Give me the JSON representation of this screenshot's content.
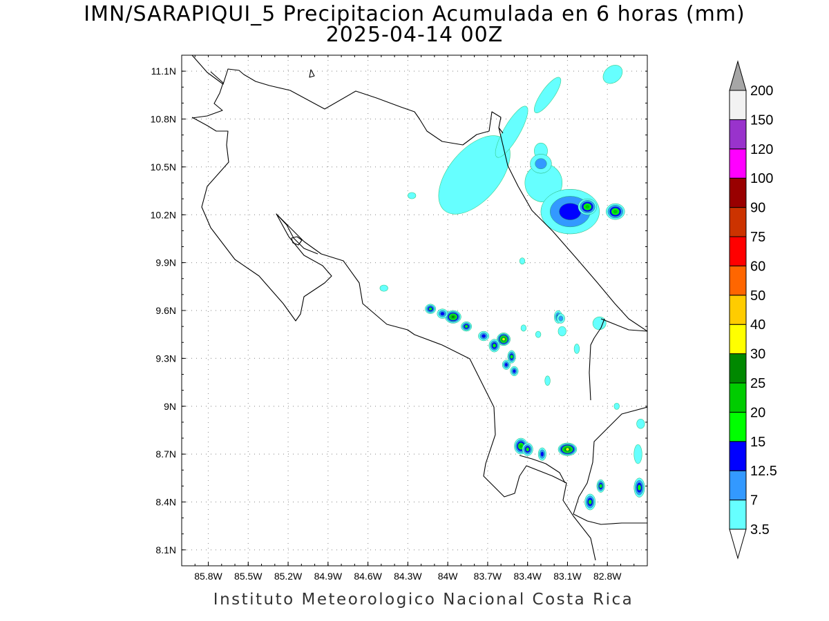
{
  "title_line1": "IMN/SARAPIQUI_5 Precipitacion Acumulada en 6 horas (mm)",
  "title_line2": "2025-04-14 00Z",
  "footer": "Instituto Meteorologico Nacional Costa Rica",
  "map": {
    "lon_range": [
      -86.0,
      -82.5
    ],
    "lat_range": [
      8.0,
      11.2
    ],
    "grid": true,
    "lon_ticks": [
      {
        "value": -85.8,
        "label": "85.8W"
      },
      {
        "value": -85.5,
        "label": "85.5W"
      },
      {
        "value": -85.2,
        "label": "85.2W"
      },
      {
        "value": -84.9,
        "label": "84.9W"
      },
      {
        "value": -84.6,
        "label": "84.6W"
      },
      {
        "value": -84.3,
        "label": "84.3W"
      },
      {
        "value": -84.0,
        "label": "84W"
      },
      {
        "value": -83.7,
        "label": "83.7W"
      },
      {
        "value": -83.4,
        "label": "83.4W"
      },
      {
        "value": -83.1,
        "label": "83.1W"
      },
      {
        "value": -82.8,
        "label": "82.8W"
      }
    ],
    "lat_ticks": [
      {
        "value": 11.1,
        "label": "11.1N"
      },
      {
        "value": 10.8,
        "label": "10.8N"
      },
      {
        "value": 10.5,
        "label": "10.5N"
      },
      {
        "value": 10.2,
        "label": "10.2N"
      },
      {
        "value": 9.9,
        "label": "9.9N"
      },
      {
        "value": 9.6,
        "label": "9.6N"
      },
      {
        "value": 9.3,
        "label": "9.3N"
      },
      {
        "value": 9.0,
        "label": "9N"
      },
      {
        "value": 8.7,
        "label": "8.7N"
      },
      {
        "value": 8.4,
        "label": "8.4N"
      },
      {
        "value": 8.1,
        "label": "8.1N"
      }
    ]
  },
  "colorbar": {
    "bins": [
      {
        "label": "3.5",
        "color": "#66ffff"
      },
      {
        "label": "7",
        "color": "#3399ff"
      },
      {
        "label": "12.5",
        "color": "#0000ff"
      },
      {
        "label": "15",
        "color": "#00ff00"
      },
      {
        "label": "20",
        "color": "#00cc00"
      },
      {
        "label": "25",
        "color": "#008800"
      },
      {
        "label": "30",
        "color": "#ffff00"
      },
      {
        "label": "40",
        "color": "#ffcc00"
      },
      {
        "label": "50",
        "color": "#ff6600"
      },
      {
        "label": "60",
        "color": "#ff0000"
      },
      {
        "label": "75",
        "color": "#cc3300"
      },
      {
        "label": "90",
        "color": "#990000"
      },
      {
        "label": "100",
        "color": "#ff00ff"
      },
      {
        "label": "120",
        "color": "#9933cc"
      },
      {
        "label": "150",
        "color": "#f2f2f2"
      },
      {
        "label": "200",
        "color": "#a6a6a6"
      }
    ],
    "below_color": "#ffffff"
  },
  "precip_cells": [
    {
      "lon": -83.08,
      "lat": 10.22,
      "rx": 0.22,
      "ry": 0.14,
      "level": 2
    },
    {
      "lon": -82.95,
      "lat": 10.25,
      "rx": 0.07,
      "ry": 0.05,
      "level": 4
    },
    {
      "lon": -82.74,
      "lat": 10.22,
      "rx": 0.07,
      "ry": 0.05,
      "level": 4
    },
    {
      "lon": -83.58,
      "lat": 9.42,
      "rx": 0.05,
      "ry": 0.04,
      "level": 6
    },
    {
      "lon": -83.1,
      "lat": 8.73,
      "rx": 0.07,
      "ry": 0.04,
      "level": 6
    },
    {
      "lon": -83.96,
      "lat": 9.56,
      "rx": 0.06,
      "ry": 0.04,
      "level": 5
    },
    {
      "lon": -83.45,
      "lat": 8.75,
      "rx": 0.05,
      "ry": 0.05,
      "level": 4
    },
    {
      "lon": -84.13,
      "lat": 9.61,
      "rx": 0.04,
      "ry": 0.03,
      "level": 3
    },
    {
      "lon": -84.04,
      "lat": 9.58,
      "rx": 0.04,
      "ry": 0.03,
      "level": 2
    },
    {
      "lon": -83.86,
      "lat": 9.5,
      "rx": 0.04,
      "ry": 0.03,
      "level": 3
    },
    {
      "lon": -83.73,
      "lat": 9.44,
      "rx": 0.04,
      "ry": 0.03,
      "level": 2
    },
    {
      "lon": -83.65,
      "lat": 9.38,
      "rx": 0.04,
      "ry": 0.04,
      "level": 3
    },
    {
      "lon": -83.52,
      "lat": 9.31,
      "rx": 0.03,
      "ry": 0.04,
      "level": 3
    },
    {
      "lon": -83.56,
      "lat": 9.26,
      "rx": 0.03,
      "ry": 0.03,
      "level": 2
    },
    {
      "lon": -83.5,
      "lat": 9.22,
      "rx": 0.03,
      "ry": 0.03,
      "level": 2
    },
    {
      "lon": -83.4,
      "lat": 8.73,
      "rx": 0.04,
      "ry": 0.04,
      "level": 3
    },
    {
      "lon": -83.29,
      "lat": 8.7,
      "rx": 0.03,
      "ry": 0.04,
      "level": 2
    },
    {
      "lon": -82.93,
      "lat": 8.4,
      "rx": 0.04,
      "ry": 0.05,
      "level": 3
    },
    {
      "lon": -82.85,
      "lat": 8.5,
      "rx": 0.03,
      "ry": 0.04,
      "level": 3
    },
    {
      "lon": -82.56,
      "lat": 8.49,
      "rx": 0.04,
      "ry": 0.06,
      "level": 3
    },
    {
      "lon": -83.17,
      "lat": 9.56,
      "rx": 0.03,
      "ry": 0.04,
      "level": 2
    },
    {
      "lon": -83.3,
      "lat": 10.52,
      "rx": 0.08,
      "ry": 0.06,
      "level": 1
    },
    {
      "lon": -83.15,
      "lat": 9.55,
      "rx": 0.03,
      "ry": 0.03,
      "level": 1
    }
  ],
  "light_rain_areas": [
    {
      "lon": -83.8,
      "lat": 10.45,
      "rx": 0.35,
      "ry": 0.16,
      "rot": -50
    },
    {
      "lon": -83.52,
      "lat": 10.72,
      "rx": 0.22,
      "ry": 0.05,
      "rot": -60
    },
    {
      "lon": -83.25,
      "lat": 10.95,
      "rx": 0.16,
      "ry": 0.04,
      "rot": -55
    },
    {
      "lon": -83.28,
      "lat": 10.4,
      "rx": 0.14,
      "ry": 0.12,
      "rot": 0
    },
    {
      "lon": -82.76,
      "lat": 11.08,
      "rx": 0.08,
      "ry": 0.05,
      "rot": -40
    },
    {
      "lon": -84.27,
      "lat": 10.32,
      "rx": 0.03,
      "ry": 0.02,
      "rot": 0
    },
    {
      "lon": -84.48,
      "lat": 9.74,
      "rx": 0.03,
      "ry": 0.02,
      "rot": 0
    },
    {
      "lon": -83.44,
      "lat": 9.91,
      "rx": 0.02,
      "ry": 0.02,
      "rot": 0
    },
    {
      "lon": -83.43,
      "lat": 9.49,
      "rx": 0.02,
      "ry": 0.02,
      "rot": 0
    },
    {
      "lon": -83.32,
      "lat": 9.45,
      "rx": 0.02,
      "ry": 0.02,
      "rot": 0
    },
    {
      "lon": -83.14,
      "lat": 9.47,
      "rx": 0.03,
      "ry": 0.03,
      "rot": 0
    },
    {
      "lon": -83.03,
      "lat": 9.36,
      "rx": 0.02,
      "ry": 0.03,
      "rot": 0
    },
    {
      "lon": -82.86,
      "lat": 9.52,
      "rx": 0.05,
      "ry": 0.04,
      "rot": -20
    },
    {
      "lon": -83.25,
      "lat": 9.16,
      "rx": 0.02,
      "ry": 0.03,
      "rot": 0
    },
    {
      "lon": -82.73,
      "lat": 9.0,
      "rx": 0.02,
      "ry": 0.02,
      "rot": 0
    },
    {
      "lon": -82.55,
      "lat": 8.89,
      "rx": 0.03,
      "ry": 0.03,
      "rot": 0
    },
    {
      "lon": -82.57,
      "lat": 8.7,
      "rx": 0.03,
      "ry": 0.06,
      "rot": 0
    },
    {
      "lon": -83.3,
      "lat": 10.6,
      "rx": 0.05,
      "ry": 0.05,
      "rot": 0
    }
  ]
}
